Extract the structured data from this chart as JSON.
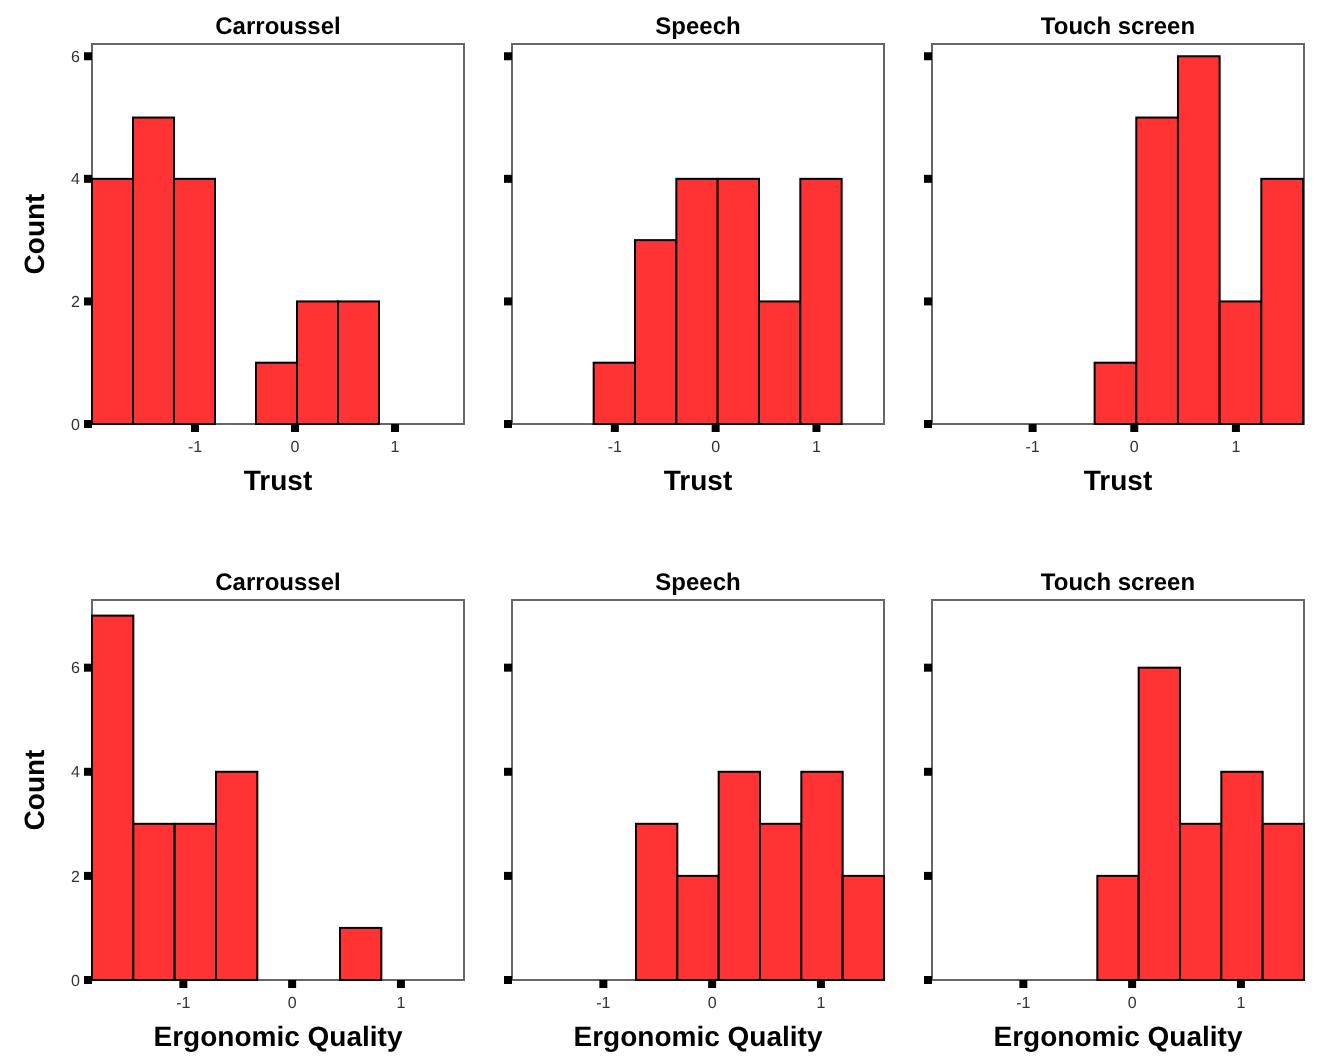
{
  "chart_data": [
    {
      "type": "histogram",
      "title": "Carroussel",
      "xlabel": "Trust",
      "ylabel": "Count",
      "bins": [
        -2.03,
        -1.62,
        -1.21,
        -0.8,
        -0.39,
        0.02,
        0.43,
        0.84
      ],
      "values": [
        4,
        5,
        4,
        0,
        1,
        2,
        2
      ],
      "color": "#ff3333",
      "xlim": [
        -2.03,
        1.69
      ],
      "xticks": [
        -1,
        0,
        1
      ],
      "ylim": [
        0,
        6.2
      ],
      "yticks": [
        0,
        2,
        4,
        6
      ],
      "grid": false
    },
    {
      "type": "histogram",
      "title": "Speech",
      "xlabel": "Trust",
      "bins": [
        -1.21,
        -0.8,
        -0.39,
        0.02,
        0.43,
        0.84,
        1.25
      ],
      "values": [
        1,
        3,
        4,
        4,
        2,
        4
      ],
      "color": "#ff3333",
      "xlim": [
        -2.02,
        1.67
      ],
      "xticks": [
        -1,
        0,
        1
      ],
      "ylim": [
        0,
        6.2
      ],
      "yticks": [
        {
          "value": 0,
          "label": null
        },
        {
          "value": 2,
          "label": null
        },
        {
          "value": 4,
          "label": null
        },
        {
          "value": 6,
          "label": null
        }
      ],
      "tick_labels": "x",
      "grid": false
    },
    {
      "type": "histogram",
      "title": "Touch screen",
      "xlabel": "Trust",
      "bins": [
        -0.39,
        0.02,
        0.43,
        0.84,
        1.25,
        1.66
      ],
      "values": [
        1,
        5,
        6,
        2,
        4
      ],
      "color": "#ff3333",
      "xlim": [
        -1.99,
        1.67
      ],
      "xticks": [
        -1,
        0,
        1
      ],
      "ylim": [
        0,
        6.2
      ],
      "yticks": [
        {
          "value": 0,
          "label": null
        },
        {
          "value": 2,
          "label": null
        },
        {
          "value": 4,
          "label": null
        },
        {
          "value": 6,
          "label": null
        }
      ],
      "tick_labels": "x",
      "grid": false
    },
    {
      "type": "histogram",
      "title": "Carroussel",
      "xlabel": "Ergonomic Quality",
      "ylabel": "Count",
      "bins": [
        -1.84,
        -1.46,
        -1.08,
        -0.7,
        -0.32,
        0.06,
        0.44,
        0.82
      ],
      "values": [
        7,
        3,
        3,
        4,
        0,
        0,
        1
      ],
      "color": "#ff3333",
      "xlim": [
        -1.84,
        1.58
      ],
      "xticks": [
        -1,
        0,
        1
      ],
      "ylim": [
        0,
        7.3
      ],
      "yticks": [
        0,
        2,
        4,
        6
      ],
      "grid": false
    },
    {
      "type": "histogram",
      "title": "Speech",
      "xlabel": "Ergonomic Quality",
      "bins": [
        -0.7,
        -0.32,
        0.06,
        0.44,
        0.82,
        1.2,
        1.58
      ],
      "values": [
        3,
        2,
        4,
        3,
        4,
        2
      ],
      "color": "#ff3333",
      "xlim": [
        -1.84,
        1.58
      ],
      "xticks": [
        -1,
        0,
        1
      ],
      "ylim": [
        0,
        7.3
      ],
      "yticks": [
        {
          "value": 0,
          "label": null
        },
        {
          "value": 2,
          "label": null
        },
        {
          "value": 4,
          "label": null
        },
        {
          "value": 6,
          "label": null
        }
      ],
      "tick_labels": "x",
      "grid": false
    },
    {
      "type": "histogram",
      "title": "Touch screen",
      "xlabel": "Ergonomic Quality",
      "bins": [
        -0.32,
        0.06,
        0.44,
        0.82,
        1.2,
        1.58
      ],
      "values": [
        2,
        6,
        3,
        4,
        3
      ],
      "color": "#ff3333",
      "xlim": [
        -1.84,
        1.58
      ],
      "xticks": [
        -1,
        0,
        1
      ],
      "ylim": [
        0,
        7.3
      ],
      "yticks": [
        {
          "value": 0,
          "label": null
        },
        {
          "value": 2,
          "label": null
        },
        {
          "value": 4,
          "label": null
        },
        {
          "value": 6,
          "label": null
        }
      ],
      "tick_labels": "x",
      "grid": false
    }
  ]
}
